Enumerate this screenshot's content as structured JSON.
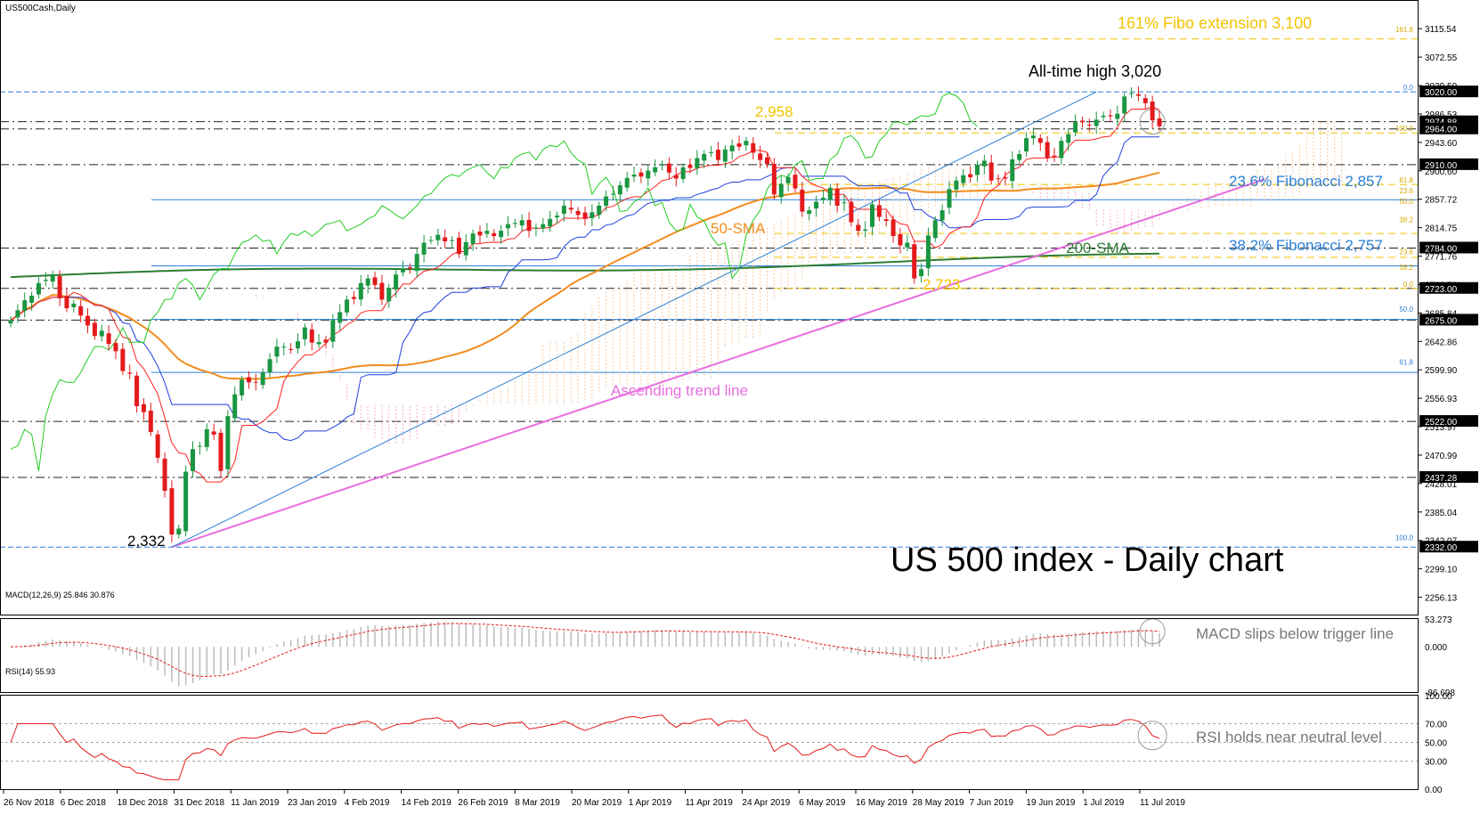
{
  "window": {
    "symbol_label": "US500Cash,Daily",
    "macd_label": "MACD(12,26,9) 25.846 30.876",
    "rsi_label": "RSI(14) 55.93"
  },
  "annotations": {
    "main_title": "US 500 index - Daily chart",
    "fibo_ext": "161% Fibo extension 3,100",
    "ath": "All-time high 3,020",
    "peak": "2,958",
    "fib236": "23.6% Fibonacci 2,857",
    "fib382": "38.2% Fibonacci 2,757",
    "sma50": "50-SMA",
    "sma200": "200-SMA",
    "low_2723": "2,723",
    "low_2332": "2,332",
    "trend": "Ascending trend line",
    "macd_note": "MACD slips below trigger line",
    "rsi_note": "RSI holds near neutral level"
  },
  "colors": {
    "candle_up": "#1a9641",
    "candle_down": "#e31a1c",
    "sma50": "#f28c1e",
    "sma200": "#2e7d32",
    "tenkan": "#ff2020",
    "kijun": "#1f3fdc",
    "chikou": "#22cc22",
    "trendline": "#e86de0",
    "fib_blue": "#2b7fd6",
    "fib_yellow": "#f2c300"
  },
  "chart_data": [
    {
      "type": "candlestick",
      "title": "US500Cash,Daily",
      "ylim": [
        2230,
        3140
      ],
      "price_axis_ticks": [
        "3115.54",
        "3072.55",
        "3029.50",
        "2986.53",
        "2943.60",
        "2900.60",
        "2857.72",
        "2814.75",
        "2771.76",
        "2728.76",
        "2685.84",
        "2642.86",
        "2599.90",
        "2556.93",
        "2513.97",
        "2470.99",
        "2428.01",
        "2385.04",
        "2342.07",
        "2299.10",
        "2256.13"
      ],
      "price_markers": [
        "3020.00",
        "2974.88",
        "2964.00",
        "2910.00",
        "2784.00",
        "2723.00",
        "2675.00",
        "2522.00",
        "2437.28",
        "2332.00"
      ],
      "fib_retracement_labels": [
        "0.0",
        "100.0",
        "61.8",
        "23.6",
        "38.2",
        "50.0",
        "61.8",
        "100.0",
        "161.8"
      ],
      "x_ticks": [
        "26 Nov 2018",
        "6 Dec 2018",
        "18 Dec 2018",
        "31 Dec 2018",
        "11 Jan 2019",
        "23 Jan 2019",
        "4 Feb 2019",
        "14 Feb 2019",
        "26 Feb 2019",
        "8 Mar 2019",
        "20 Mar 2019",
        "1 Apr 2019",
        "11 Apr 2019",
        "24 Apr 2019",
        "6 May 2019",
        "16 May 2019",
        "28 May 2019",
        "7 Jun 2019",
        "19 Jun 2019",
        "1 Jul 2019",
        "11 Jul 2019"
      ],
      "close": [
        2675,
        2690,
        2705,
        2712,
        2731,
        2736,
        2744,
        2708,
        2693,
        2700,
        2682,
        2667,
        2651,
        2659,
        2639,
        2628,
        2598,
        2594,
        2545,
        2536,
        2506,
        2467,
        2417,
        2351,
        2360,
        2446,
        2480,
        2485,
        2510,
        2502,
        2447,
        2530,
        2563,
        2585,
        2581,
        2581,
        2596,
        2616,
        2635,
        2635,
        2630,
        2643,
        2664,
        2641,
        2642,
        2641,
        2675,
        2687,
        2706,
        2707,
        2731,
        2738,
        2728,
        2706,
        2724,
        2744,
        2753,
        2753,
        2775,
        2792,
        2796,
        2804,
        2794,
        2796,
        2775,
        2793,
        2806,
        2803,
        2810,
        2802,
        2810,
        2820,
        2822,
        2826,
        2810,
        2815,
        2820,
        2828,
        2833,
        2848,
        2842,
        2834,
        2828,
        2838,
        2848,
        2862,
        2866,
        2879,
        2890,
        2895,
        2892,
        2901,
        2906,
        2910,
        2898,
        2889,
        2906,
        2905,
        2920,
        2926,
        2929,
        2917,
        2933,
        2939,
        2937,
        2946,
        2928,
        2917,
        2911,
        2865,
        2881,
        2891,
        2874,
        2839,
        2841,
        2854,
        2860,
        2875,
        2848,
        2853,
        2823,
        2810,
        2812,
        2850,
        2831,
        2825,
        2802,
        2788,
        2792,
        2738,
        2752,
        2803,
        2826,
        2841,
        2873,
        2886,
        2894,
        2891,
        2910,
        2916,
        2886,
        2889,
        2889,
        2918,
        2926,
        2950,
        2954,
        2943,
        2920,
        2922,
        2946,
        2956,
        2974,
        2974,
        2970,
        2978,
        2984,
        2983,
        2987,
        3013,
        3018,
        3014,
        3003,
        2977,
        2968
      ],
      "macd_ylim": [
        -86.698,
        53.273
      ],
      "rsi_levels": [
        70,
        50,
        30
      ]
    }
  ]
}
